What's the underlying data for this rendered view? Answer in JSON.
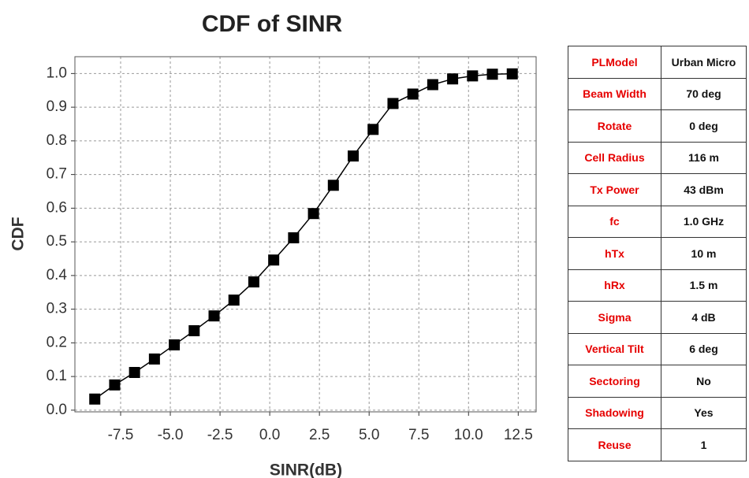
{
  "chart_data": {
    "type": "line",
    "title": "CDF of SINR",
    "xlabel": "SINR(dB)",
    "ylabel": "CDF",
    "x": [
      -8.8,
      -7.8,
      -6.8,
      -5.8,
      -4.8,
      -3.8,
      -2.8,
      -1.8,
      -0.8,
      0.2,
      1.2,
      2.2,
      3.2,
      4.2,
      5.2,
      6.2,
      7.2,
      8.2,
      9.2,
      10.2,
      11.2,
      12.2
    ],
    "values": [
      0.033,
      0.075,
      0.112,
      0.152,
      0.194,
      0.236,
      0.28,
      0.327,
      0.381,
      0.446,
      0.512,
      0.584,
      0.668,
      0.755,
      0.834,
      0.911,
      0.939,
      0.967,
      0.984,
      0.993,
      0.998,
      0.999
    ],
    "color": "#000000",
    "xlim": [
      -9.8,
      13.4
    ],
    "ylim": [
      -0.005,
      1.05
    ],
    "xticks": [
      -7.5,
      {
        "value": -5,
        "label": "-5.0"
      },
      -2.5,
      {
        "value": 0,
        "label": "0.0"
      },
      2.5,
      {
        "value": 5,
        "label": "5.0"
      },
      7.5,
      {
        "value": 10,
        "label": "10.0"
      },
      12.5
    ],
    "yticks": [
      {
        "value": 0,
        "label": "0.0"
      },
      0.1,
      0.2,
      0.3,
      0.4,
      0.5,
      0.6,
      0.7,
      0.8,
      0.9,
      {
        "value": 1,
        "label": "1.0"
      }
    ],
    "grid": true
  },
  "table": {
    "rows": [
      [
        "PLModel",
        "Urban Micro"
      ],
      [
        "Beam Width",
        "70 deg"
      ],
      [
        "Rotate",
        "0 deg"
      ],
      [
        "Cell Radius",
        "116 m"
      ],
      [
        "Tx Power",
        "43 dBm"
      ],
      [
        "fc",
        "1.0 GHz"
      ],
      [
        "hTx",
        "10 m"
      ],
      [
        "hRx",
        "1.5 m"
      ],
      [
        "Sigma",
        "4 dB"
      ],
      [
        "Vertical Tilt",
        "6 deg"
      ],
      [
        "Sectoring",
        "No"
      ],
      [
        "Shadowing",
        "Yes"
      ],
      [
        "Reuse",
        "1"
      ]
    ]
  }
}
